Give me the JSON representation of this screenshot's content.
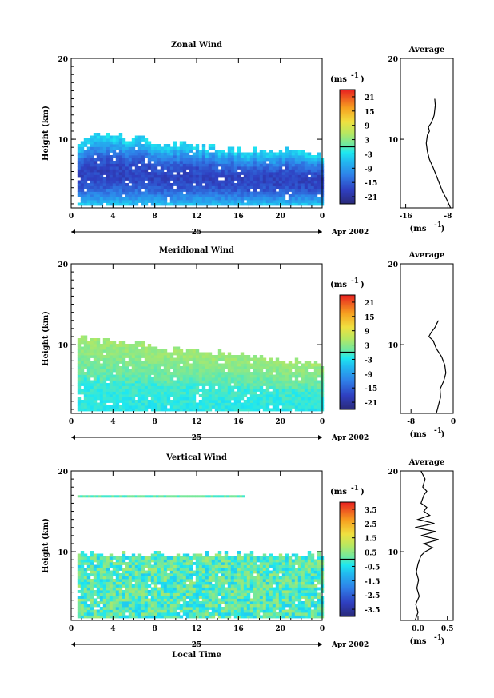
{
  "chart_data": [
    {
      "type": "heatmap",
      "title": "Zonal Wind",
      "ylabel": "Height (km)",
      "xlabel": "",
      "x_ticks": [
        "0",
        "4",
        "8",
        "12",
        "16",
        "20",
        "0"
      ],
      "y_ticks": [
        "10",
        "20"
      ],
      "xlim": [
        0,
        24
      ],
      "ylim": [
        1.5,
        20
      ],
      "date_day": "25",
      "date_month": "Apr 2002",
      "colorbar_unit": "(ms",
      "colorbar_unit_exp": "-1",
      "colorbar_ticks": [
        "21",
        "15",
        "9",
        "3",
        "-3",
        "-9",
        "-15",
        "-21"
      ],
      "colorbar_range": [
        -24,
        24
      ],
      "data_top_km": [
        9,
        10.5,
        10.2,
        10,
        9.5,
        9,
        8.5,
        8.5,
        8
      ],
      "data_top_hours": [
        0,
        2,
        4,
        6,
        8,
        12,
        16,
        20,
        24
      ],
      "value_range": [
        -21,
        -3
      ],
      "profile": {
        "title": "Average",
        "x_ticks": [
          "-16",
          "-8"
        ],
        "xlim": [
          -17,
          -7
        ],
        "xlabel": "(ms",
        "xlabel_exp": "-1",
        "y_ticks": [
          "10",
          "20"
        ],
        "ylim": [
          1.5,
          20
        ],
        "x": [
          -7.5,
          -8.2,
          -9,
          -9.6,
          -10.2,
          -10.8,
          -11.5,
          -11.9,
          -12.1,
          -11.9,
          -11.5,
          -11.7,
          -11.2,
          -10.8,
          -10.6,
          -10.5,
          -10.4,
          -10.5
        ],
        "y": [
          1.5,
          2.5,
          3.5,
          4.5,
          5.5,
          6.5,
          7.5,
          8.5,
          9.5,
          10.5,
          11,
          11.5,
          12,
          12.6,
          13,
          13.6,
          14.2,
          15
        ]
      }
    },
    {
      "type": "heatmap",
      "title": "Meridional Wind",
      "ylabel": "Height (km)",
      "xlabel": "",
      "x_ticks": [
        "0",
        "4",
        "8",
        "12",
        "16",
        "20",
        "0"
      ],
      "y_ticks": [
        "10",
        "20"
      ],
      "xlim": [
        0,
        24
      ],
      "ylim": [
        1.5,
        20
      ],
      "date_day": "25",
      "date_month": "Apr 2002",
      "colorbar_unit": "(ms",
      "colorbar_unit_exp": "-1",
      "colorbar_ticks": [
        "21",
        "15",
        "9",
        "3",
        "-3",
        "-9",
        "-15",
        "-21"
      ],
      "colorbar_range": [
        -24,
        24
      ],
      "data_top_km": [
        10.5,
        10.5,
        10.2,
        10,
        9.5,
        9,
        8.5,
        8,
        7.5
      ],
      "data_top_hours": [
        0,
        2,
        4,
        6,
        8,
        12,
        16,
        20,
        24
      ],
      "value_range": [
        -6,
        6
      ],
      "profile": {
        "title": "Average",
        "x_ticks": [
          "-8",
          "0"
        ],
        "xlim": [
          -10,
          0
        ],
        "xlabel": "(ms",
        "xlabel_exp": "-1",
        "y_ticks": [
          "10",
          "20"
        ],
        "ylim": [
          1.5,
          20
        ],
        "x": [
          -3.2,
          -2.8,
          -2.4,
          -2.5,
          -1.8,
          -1.4,
          -1.6,
          -2.2,
          -3.2,
          -3.8,
          -4.6,
          -4.2,
          -3.6,
          -3.4,
          -3.2,
          -2.8
        ],
        "y": [
          1.5,
          2.5,
          3.5,
          4.5,
          5.5,
          6.5,
          7.5,
          8.5,
          9.5,
          10.5,
          11,
          11.5,
          12,
          12.2,
          12.5,
          13
        ]
      }
    },
    {
      "type": "heatmap",
      "title": "Vertical Wind",
      "ylabel": "Height (km)",
      "xlabel": "Local Time",
      "x_ticks": [
        "0",
        "4",
        "8",
        "12",
        "16",
        "20",
        "0"
      ],
      "y_ticks": [
        "10",
        "20"
      ],
      "xlim": [
        0,
        24
      ],
      "ylim": [
        1.5,
        20
      ],
      "date_day": "25",
      "date_month": "Apr 2002",
      "colorbar_unit": "(ms",
      "colorbar_unit_exp": "-1",
      "colorbar_ticks": [
        "3.5",
        "2.5",
        "1.5",
        "0.5",
        "-0.5",
        "-1.5",
        "-2.5",
        "-3.5"
      ],
      "colorbar_range": [
        -4,
        4
      ],
      "data_top_km": [
        9.5,
        9.5,
        9.5,
        9.5,
        9.5,
        9.5,
        9.5,
        9.5,
        9.5
      ],
      "data_top_hours": [
        0,
        2,
        4,
        6,
        8,
        12,
        16,
        20,
        24
      ],
      "value_range": [
        -1,
        1
      ],
      "profile": {
        "title": "Average",
        "x_ticks": [
          "0.0",
          "0.5"
        ],
        "xlim": [
          -0.3,
          0.6
        ],
        "xlabel": "(ms",
        "xlabel_exp": "-1",
        "y_ticks": [
          "10",
          "20"
        ],
        "ylim": [
          1.5,
          20
        ],
        "x": [
          -0.05,
          0.0,
          -0.04,
          0.02,
          -0.02,
          0.01,
          -0.03,
          0.0,
          0.05,
          0.12,
          0.25,
          0.1,
          0.35,
          0.05,
          0.3,
          -0.05,
          0.28,
          0.0,
          0.2,
          0.1,
          0.15,
          0.05,
          0.1,
          0.15,
          0.08,
          0.12,
          0.05
        ],
        "y": [
          1.5,
          2.5,
          3.5,
          4.5,
          5.5,
          6.5,
          7.5,
          8.5,
          9.5,
          10,
          10.5,
          11,
          11.5,
          12,
          12.5,
          13,
          13.5,
          14,
          14.5,
          15,
          15.5,
          16,
          17,
          17.5,
          18,
          19,
          20
        ]
      }
    }
  ]
}
